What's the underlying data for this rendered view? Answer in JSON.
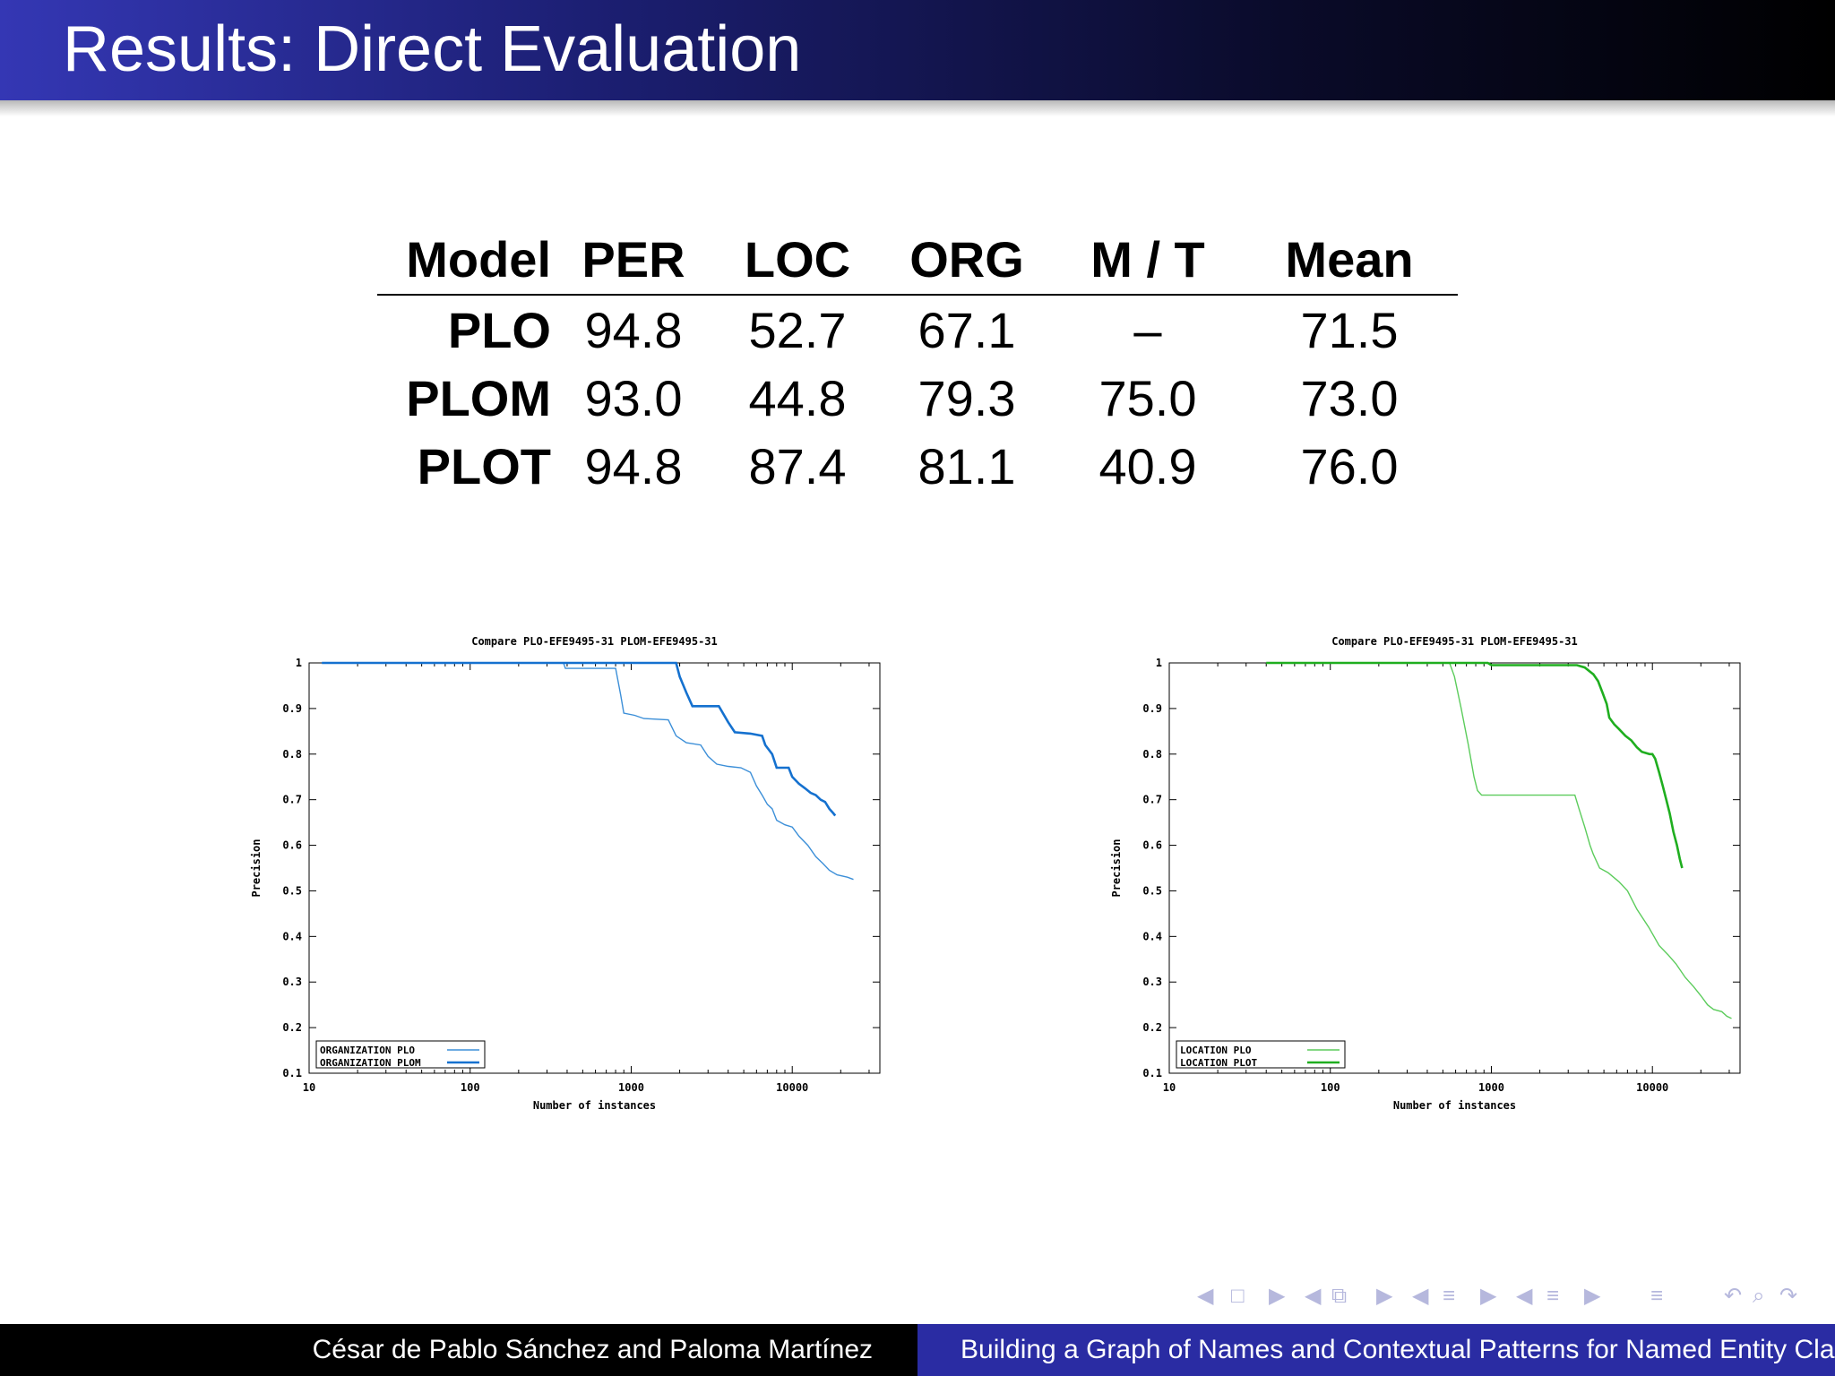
{
  "slide": {
    "title": "Results: Direct Evaluation"
  },
  "table": {
    "headers": [
      "Model",
      "PER",
      "LOC",
      "ORG",
      "M / T",
      "Mean"
    ],
    "rows": [
      [
        "PLO",
        "94.8",
        "52.7",
        "67.1",
        "–",
        "71.5"
      ],
      [
        "PLOM",
        "93.0",
        "44.8",
        "79.3",
        "75.0",
        "73.0"
      ],
      [
        "PLOT",
        "94.8",
        "87.4",
        "81.1",
        "40.9",
        "76.0"
      ]
    ]
  },
  "chart_data": [
    {
      "type": "line",
      "title": "Compare PLO-EFE9495-31  PLOM-EFE9495-31",
      "xlabel": "Number of instances",
      "ylabel": "Precision",
      "x_scale": "log",
      "xlim": [
        10,
        35000
      ],
      "ylim": [
        0.1,
        1
      ],
      "x_ticks": [
        "10",
        "100",
        "1000",
        "10000"
      ],
      "y_ticks": [
        "0.1",
        "0.2",
        "0.3",
        "0.4",
        "0.5",
        "0.6",
        "0.7",
        "0.8",
        "0.9",
        "1"
      ],
      "legend_position": "bottom-left",
      "series": [
        {
          "name": "ORGANIZATION PLO",
          "color": "#3c8fd8",
          "points": [
            [
              12,
              1.0
            ],
            [
              380,
              1.0
            ],
            [
              390,
              0.988
            ],
            [
              800,
              0.988
            ],
            [
              860,
              0.93
            ],
            [
              900,
              0.89
            ],
            [
              1050,
              0.885
            ],
            [
              1200,
              0.878
            ],
            [
              1700,
              0.875
            ],
            [
              1900,
              0.84
            ],
            [
              2200,
              0.825
            ],
            [
              2700,
              0.82
            ],
            [
              3000,
              0.795
            ],
            [
              3400,
              0.778
            ],
            [
              4000,
              0.773
            ],
            [
              4800,
              0.77
            ],
            [
              5500,
              0.76
            ],
            [
              6000,
              0.73
            ],
            [
              6500,
              0.71
            ],
            [
              7000,
              0.69
            ],
            [
              7500,
              0.68
            ],
            [
              8000,
              0.655
            ],
            [
              9000,
              0.645
            ],
            [
              10000,
              0.64
            ],
            [
              11000,
              0.62
            ],
            [
              12500,
              0.6
            ],
            [
              14000,
              0.575
            ],
            [
              15500,
              0.56
            ],
            [
              17000,
              0.545
            ],
            [
              19000,
              0.535
            ],
            [
              22000,
              0.53
            ],
            [
              24000,
              0.525
            ]
          ]
        },
        {
          "name": "ORGANIZATION PLOM",
          "color": "#1571cf",
          "points": [
            [
              12,
              1.0
            ],
            [
              1900,
              1.0
            ],
            [
              2000,
              0.97
            ],
            [
              2200,
              0.935
            ],
            [
              2400,
              0.905
            ],
            [
              3500,
              0.905
            ],
            [
              4000,
              0.87
            ],
            [
              4400,
              0.848
            ],
            [
              5500,
              0.845
            ],
            [
              6500,
              0.84
            ],
            [
              6800,
              0.82
            ],
            [
              7500,
              0.8
            ],
            [
              8000,
              0.77
            ],
            [
              9500,
              0.77
            ],
            [
              10000,
              0.75
            ],
            [
              11000,
              0.735
            ],
            [
              12000,
              0.725
            ],
            [
              13000,
              0.715
            ],
            [
              14000,
              0.71
            ],
            [
              15000,
              0.7
            ],
            [
              16000,
              0.695
            ],
            [
              17000,
              0.68
            ],
            [
              18000,
              0.67
            ],
            [
              18500,
              0.665
            ]
          ]
        }
      ]
    },
    {
      "type": "line",
      "title": "Compare PLO-EFE9495-31  PLOM-EFE9495-31",
      "xlabel": "Number of instances",
      "ylabel": "Precision",
      "x_scale": "log",
      "xlim": [
        10,
        35000
      ],
      "ylim": [
        0.1,
        1
      ],
      "x_ticks": [
        "10",
        "100",
        "1000",
        "10000"
      ],
      "y_ticks": [
        "0.1",
        "0.2",
        "0.3",
        "0.4",
        "0.5",
        "0.6",
        "0.7",
        "0.8",
        "0.9",
        "1"
      ],
      "legend_position": "bottom-left",
      "series": [
        {
          "name": "LOCATION PLO",
          "color": "#5ccc5c",
          "points": [
            [
              40,
              1.0
            ],
            [
              550,
              1.0
            ],
            [
              590,
              0.97
            ],
            [
              650,
              0.9
            ],
            [
              720,
              0.82
            ],
            [
              780,
              0.75
            ],
            [
              820,
              0.72
            ],
            [
              870,
              0.71
            ],
            [
              3300,
              0.71
            ],
            [
              3500,
              0.68
            ],
            [
              3800,
              0.64
            ],
            [
              4100,
              0.6
            ],
            [
              4300,
              0.58
            ],
            [
              4700,
              0.55
            ],
            [
              5300,
              0.54
            ],
            [
              6200,
              0.52
            ],
            [
              7000,
              0.5
            ],
            [
              8000,
              0.46
            ],
            [
              9500,
              0.42
            ],
            [
              11000,
              0.38
            ],
            [
              12500,
              0.36
            ],
            [
              14000,
              0.34
            ],
            [
              16000,
              0.31
            ],
            [
              18000,
              0.29
            ],
            [
              20000,
              0.27
            ],
            [
              22000,
              0.25
            ],
            [
              24000,
              0.24
            ],
            [
              27000,
              0.235
            ],
            [
              29000,
              0.225
            ],
            [
              31000,
              0.22
            ]
          ]
        },
        {
          "name": "LOCATION PLOT",
          "color": "#1fae1f",
          "points": [
            [
              40,
              1.0
            ],
            [
              950,
              1.0
            ],
            [
              1000,
              0.995
            ],
            [
              3400,
              0.995
            ],
            [
              3800,
              0.99
            ],
            [
              4300,
              0.975
            ],
            [
              4600,
              0.96
            ],
            [
              4900,
              0.935
            ],
            [
              5200,
              0.91
            ],
            [
              5400,
              0.88
            ],
            [
              5800,
              0.865
            ],
            [
              6200,
              0.855
            ],
            [
              6800,
              0.84
            ],
            [
              7400,
              0.83
            ],
            [
              8000,
              0.815
            ],
            [
              8600,
              0.805
            ],
            [
              9600,
              0.8
            ],
            [
              10000,
              0.8
            ],
            [
              10400,
              0.79
            ],
            [
              11000,
              0.76
            ],
            [
              11600,
              0.73
            ],
            [
              12200,
              0.7
            ],
            [
              12800,
              0.67
            ],
            [
              13500,
              0.63
            ],
            [
              14200,
              0.6
            ],
            [
              14800,
              0.57
            ],
            [
              15300,
              0.55
            ]
          ]
        }
      ]
    }
  ],
  "navigation": {
    "left_arrow": "◀",
    "right_arrow": "▶",
    "frame_icon": "□",
    "subsection_icon": "⧉",
    "section_icon": "≡",
    "undo_icon": "↶",
    "search_icon": "⌕",
    "redo_icon": "↷"
  },
  "footer": {
    "authors": "César de Pablo Sánchez and Paloma Martínez",
    "talk_title": "Building a Graph of Names and Contextual Patterns for Named Entity Classification"
  }
}
